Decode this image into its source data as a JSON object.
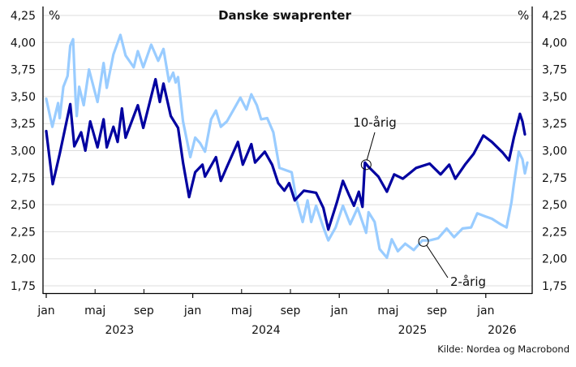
{
  "chart_data": {
    "type": "line",
    "title": "Danske swaprenter",
    "ylabel_left": "%",
    "ylabel_right": "%",
    "ylim": [
      1.75,
      4.25
    ],
    "yticks": [
      "4,25",
      "4,00",
      "3,75",
      "3,50",
      "3,25",
      "3,00",
      "2,75",
      "2,50",
      "2,25",
      "2,00",
      "1,75"
    ],
    "ytick_values": [
      4.25,
      4.0,
      3.75,
      3.5,
      3.25,
      3.0,
      2.75,
      2.5,
      2.25,
      2.0,
      1.75
    ],
    "x_unit": "months since jan 2023",
    "xlim": [
      -0.2,
      39.6
    ],
    "xticks": [
      {
        "t": 0,
        "label": "jan"
      },
      {
        "t": 4,
        "label": "maj"
      },
      {
        "t": 8,
        "label": "sep"
      },
      {
        "t": 12,
        "label": "jan"
      },
      {
        "t": 16,
        "label": "maj"
      },
      {
        "t": 20,
        "label": "sep"
      },
      {
        "t": 24,
        "label": "jan"
      },
      {
        "t": 28,
        "label": "maj"
      },
      {
        "t": 32,
        "label": "sep"
      },
      {
        "t": 36,
        "label": "jan"
      }
    ],
    "year_labels": [
      {
        "t": 6,
        "label": "2023"
      },
      {
        "t": 18,
        "label": "2024"
      },
      {
        "t": 30,
        "label": "2025"
      },
      {
        "t": 38,
        "label": "2026"
      }
    ],
    "grid": true,
    "series": [
      {
        "name": "2-årig",
        "color": "#99ccff",
        "points": [
          [
            0,
            3.48
          ],
          [
            0.5,
            3.22
          ],
          [
            0.97,
            3.44
          ],
          [
            1.1,
            3.3
          ],
          [
            1.4,
            3.59
          ],
          [
            1.75,
            3.69
          ],
          [
            1.97,
            3.97
          ],
          [
            2.2,
            4.03
          ],
          [
            2.4,
            3.49
          ],
          [
            2.5,
            3.32
          ],
          [
            2.7,
            3.59
          ],
          [
            3.07,
            3.42
          ],
          [
            3.5,
            3.75
          ],
          [
            4.2,
            3.45
          ],
          [
            4.7,
            3.81
          ],
          [
            4.96,
            3.58
          ],
          [
            5.5,
            3.89
          ],
          [
            6.07,
            4.07
          ],
          [
            6.5,
            3.88
          ],
          [
            7.17,
            3.77
          ],
          [
            7.5,
            3.92
          ],
          [
            7.95,
            3.77
          ],
          [
            8.6,
            3.98
          ],
          [
            9.17,
            3.83
          ],
          [
            9.6,
            3.94
          ],
          [
            10.05,
            3.64
          ],
          [
            10.4,
            3.72
          ],
          [
            10.6,
            3.63
          ],
          [
            10.8,
            3.68
          ],
          [
            11.2,
            3.27
          ],
          [
            11.8,
            2.94
          ],
          [
            12.2,
            3.12
          ],
          [
            12.6,
            3.07
          ],
          [
            13,
            2.99
          ],
          [
            13.5,
            3.29
          ],
          [
            13.9,
            3.37
          ],
          [
            14.3,
            3.22
          ],
          [
            14.8,
            3.27
          ],
          [
            15.4,
            3.39
          ],
          [
            15.9,
            3.49
          ],
          [
            16.4,
            3.38
          ],
          [
            16.8,
            3.52
          ],
          [
            17.25,
            3.42
          ],
          [
            17.6,
            3.29
          ],
          [
            18.1,
            3.3
          ],
          [
            18.6,
            3.17
          ],
          [
            19.1,
            2.84
          ],
          [
            19.6,
            2.82
          ],
          [
            20.1,
            2.8
          ],
          [
            20.5,
            2.54
          ],
          [
            21,
            2.34
          ],
          [
            21.4,
            2.54
          ],
          [
            21.7,
            2.34
          ],
          [
            22.1,
            2.49
          ],
          [
            22.7,
            2.29
          ],
          [
            23.1,
            2.17
          ],
          [
            23.7,
            2.29
          ],
          [
            24.3,
            2.49
          ],
          [
            24.9,
            2.32
          ],
          [
            25.5,
            2.47
          ],
          [
            26.2,
            2.24
          ],
          [
            26.4,
            2.43
          ],
          [
            26.9,
            2.34
          ],
          [
            27.3,
            2.09
          ],
          [
            27.9,
            2.01
          ],
          [
            28.3,
            2.18
          ],
          [
            28.8,
            2.07
          ],
          [
            29.4,
            2.14
          ],
          [
            30.1,
            2.08
          ],
          [
            30.8,
            2.17
          ],
          [
            31.4,
            2.17
          ],
          [
            32.1,
            2.19
          ],
          [
            32.8,
            2.28
          ],
          [
            33.4,
            2.2
          ],
          [
            34.1,
            2.28
          ],
          [
            34.8,
            2.29
          ],
          [
            35.3,
            2.42
          ],
          [
            36,
            2.39
          ],
          [
            36.5,
            2.37
          ],
          [
            37.2,
            2.32
          ],
          [
            37.7,
            2.29
          ],
          [
            38.1,
            2.52
          ],
          [
            38.3,
            2.69
          ],
          [
            38.7,
            2.99
          ],
          [
            39.0,
            2.92
          ],
          [
            39.2,
            2.79
          ],
          [
            39.4,
            2.89
          ]
        ]
      },
      {
        "name": "10-årig",
        "color": "#0000a0",
        "points": [
          [
            0,
            3.18
          ],
          [
            0.53,
            2.69
          ],
          [
            1.1,
            2.97
          ],
          [
            1.97,
            3.43
          ],
          [
            2.3,
            3.04
          ],
          [
            2.86,
            3.17
          ],
          [
            3.2,
            3.0
          ],
          [
            3.6,
            3.27
          ],
          [
            4.2,
            3.03
          ],
          [
            4.7,
            3.29
          ],
          [
            4.96,
            3.03
          ],
          [
            5.5,
            3.22
          ],
          [
            5.85,
            3.08
          ],
          [
            6.2,
            3.39
          ],
          [
            6.5,
            3.12
          ],
          [
            7.5,
            3.42
          ],
          [
            7.95,
            3.21
          ],
          [
            8.95,
            3.66
          ],
          [
            9.3,
            3.45
          ],
          [
            9.6,
            3.62
          ],
          [
            10.2,
            3.32
          ],
          [
            10.8,
            3.21
          ],
          [
            11.2,
            2.89
          ],
          [
            11.7,
            2.57
          ],
          [
            12.2,
            2.8
          ],
          [
            12.8,
            2.87
          ],
          [
            13,
            2.76
          ],
          [
            13.9,
            2.94
          ],
          [
            14.3,
            2.72
          ],
          [
            14.8,
            2.85
          ],
          [
            15.7,
            3.08
          ],
          [
            16.1,
            2.87
          ],
          [
            16.8,
            3.06
          ],
          [
            17.1,
            2.89
          ],
          [
            17.9,
            2.99
          ],
          [
            18.5,
            2.87
          ],
          [
            19,
            2.7
          ],
          [
            19.5,
            2.63
          ],
          [
            19.9,
            2.7
          ],
          [
            20.35,
            2.54
          ],
          [
            21.1,
            2.63
          ],
          [
            22.1,
            2.61
          ],
          [
            22.7,
            2.47
          ],
          [
            23.1,
            2.27
          ],
          [
            23.8,
            2.52
          ],
          [
            24.3,
            2.72
          ],
          [
            24.8,
            2.59
          ],
          [
            25.2,
            2.49
          ],
          [
            25.6,
            2.62
          ],
          [
            25.9,
            2.48
          ],
          [
            26.1,
            2.89
          ],
          [
            26.4,
            2.85
          ],
          [
            27.2,
            2.76
          ],
          [
            27.9,
            2.62
          ],
          [
            28.5,
            2.78
          ],
          [
            29.2,
            2.74
          ],
          [
            30.3,
            2.84
          ],
          [
            31.4,
            2.88
          ],
          [
            32.3,
            2.78
          ],
          [
            33,
            2.87
          ],
          [
            33.5,
            2.74
          ],
          [
            34.3,
            2.87
          ],
          [
            35,
            2.97
          ],
          [
            35.8,
            3.14
          ],
          [
            36.5,
            3.08
          ],
          [
            37.4,
            2.98
          ],
          [
            37.9,
            2.91
          ],
          [
            38.3,
            3.12
          ],
          [
            38.8,
            3.34
          ],
          [
            39.0,
            3.27
          ],
          [
            39.2,
            3.15
          ]
        ]
      }
    ],
    "annotations": [
      {
        "label": "10-årig",
        "series": "10-årig",
        "t": 26.2,
        "value": 2.87
      },
      {
        "label": "2-årig",
        "series": "2-årig",
        "t": 30.9,
        "value": 2.16
      }
    ],
    "source": "Kilde: Nordea og Macrobond"
  }
}
